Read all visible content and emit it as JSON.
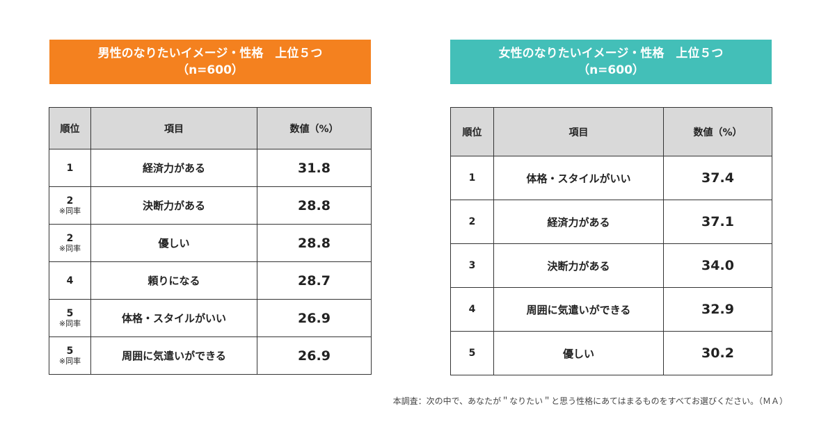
{
  "male": {
    "banner_line1": "男性のなりたいイメージ・性格　上位５つ",
    "banner_line2": "（n=600）",
    "headers": {
      "rank": "順位",
      "item": "項目",
      "value": "数値（%）"
    },
    "rows": [
      {
        "rank": "1",
        "tie": "",
        "item": "経済力がある",
        "value": "31.8"
      },
      {
        "rank": "2",
        "tie": "※同率",
        "item": "決断力がある",
        "value": "28.8"
      },
      {
        "rank": "2",
        "tie": "※同率",
        "item": "優しい",
        "value": "28.8"
      },
      {
        "rank": "4",
        "tie": "",
        "item": "頼りになる",
        "value": "28.7"
      },
      {
        "rank": "5",
        "tie": "※同率",
        "item": "体格・スタイルがいい",
        "value": "26.9"
      },
      {
        "rank": "5",
        "tie": "※同率",
        "item": "周囲に気遣いができる",
        "value": "26.9"
      }
    ]
  },
  "female": {
    "banner_line1": "女性のなりたいイメージ・性格　上位５つ",
    "banner_line2": "（n=600）",
    "headers": {
      "rank": "順位",
      "item": "項目",
      "value": "数値（%）"
    },
    "rows": [
      {
        "rank": "1",
        "tie": "",
        "item": "体格・スタイルがいい",
        "value": "37.4"
      },
      {
        "rank": "2",
        "tie": "",
        "item": "経済力がある",
        "value": "37.1"
      },
      {
        "rank": "3",
        "tie": "",
        "item": "決断力がある",
        "value": "34.0"
      },
      {
        "rank": "4",
        "tie": "",
        "item": "周囲に気遣いができる",
        "value": "32.9"
      },
      {
        "rank": "5",
        "tie": "",
        "item": "優しい",
        "value": "30.2"
      }
    ]
  },
  "footnote": "本調査：次の中で、あなたが＂なりたい＂と思う性格にあてはまるものをすべてお選びください。（ＭＡ）",
  "colors": {
    "male_banner": "#f4811f",
    "female_banner": "#43bfb8",
    "header_bg": "#d9d9d9"
  }
}
